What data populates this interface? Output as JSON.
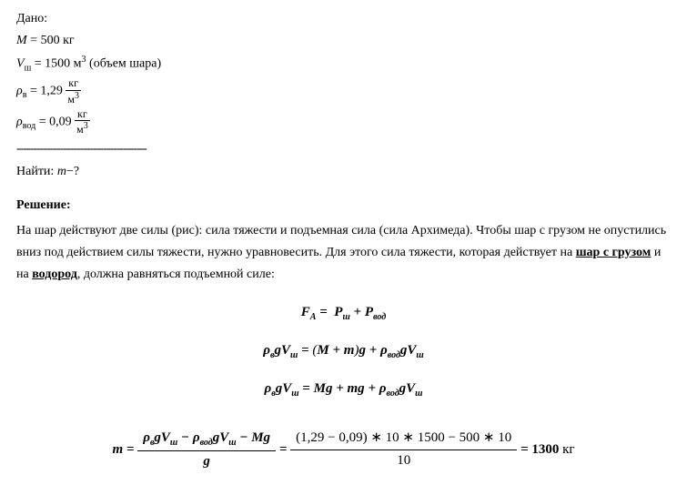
{
  "given": {
    "title": "Дано:",
    "mass_label": "M",
    "mass_value": "= 500 кг",
    "volume_label": "V",
    "volume_sub": "ш",
    "volume_value": "= 1500 м",
    "volume_sup": "3",
    "volume_note": " (объем шара)",
    "rho_air_label": "ρ",
    "rho_air_sub": "в",
    "rho_air_eq": "= 1,29",
    "rho_unit_num": "кг",
    "rho_unit_den_base": "м",
    "rho_unit_den_sup": "3",
    "rho_hyd_label": "ρ",
    "rho_hyd_sub": "вод",
    "rho_hyd_eq": "= 0,09",
    "separator": "---------------------------------------",
    "find_label": "Найти: ",
    "find_var": "m",
    "find_q": "−?"
  },
  "solution": {
    "title": "Решение:",
    "text_part1": "На шар действуют две силы (рис): сила тяжести и подъемная сила (сила Архимеда). Чтобы шар с грузом не опустились вниз под действием силы тяжести, нужно уравновесить. Для этого сила тяжести, которая действует на ",
    "underline1": "шар с грузом",
    "text_part2": " и на ",
    "underline2": "водород",
    "text_part3": ", должна равняться подъемной силе:"
  },
  "eq1": {
    "FA": "F",
    "FA_sub": "A",
    "eq": " = ",
    "P1": "P",
    "P1_sub": "ш",
    "plus": " + ",
    "P2": "P",
    "P2_sub": "вод"
  },
  "eq2": {
    "lhs_rho": "ρ",
    "lhs_rho_sub": "в",
    "lhs_g": "g",
    "lhs_V": "V",
    "lhs_V_sub": "ш",
    "eq": " = ",
    "rhs_paren_open": "(",
    "rhs_M": "M",
    "rhs_plus1": " + ",
    "rhs_m": "m",
    "rhs_paren_close": ")",
    "rhs_g": "g",
    "rhs_plus2": " + ",
    "rhs_rho": "ρ",
    "rhs_rho_sub": "вод",
    "rhs_g2": "g",
    "rhs_V2": "V",
    "rhs_V2_sub": "ш"
  },
  "eq3": {
    "lhs_rho": "ρ",
    "lhs_rho_sub": "в",
    "lhs_g": "g",
    "lhs_V": "V",
    "lhs_V_sub": "ш",
    "eq": " = ",
    "rhs_Mg": "Mg",
    "rhs_plus1": " + ",
    "rhs_mg": "mg",
    "rhs_plus2": " + ",
    "rhs_rho": "ρ",
    "rhs_rho_sub": "вод",
    "rhs_g2": "g",
    "rhs_V2": "V",
    "rhs_V2_sub": "ш"
  },
  "eq4": {
    "m": "m",
    "eq1": " = ",
    "num1_rho1": "ρ",
    "num1_rho1_sub": "в",
    "num1_g1": "g",
    "num1_V1": "V",
    "num1_V1_sub": "ш",
    "num1_minus1": " − ",
    "num1_rho2": "ρ",
    "num1_rho2_sub": "вод",
    "num1_g2": "g",
    "num1_V2": "V",
    "num1_V2_sub": "ш",
    "num1_minus2": " − ",
    "num1_Mg": "Mg",
    "den1": "g",
    "eq2": " = ",
    "num2": "(1,29 − 0,09) ∗ 10 ∗ 1500 − 500 ∗ 10",
    "den2": "10",
    "eq3": " = ",
    "result": "1300",
    "unit": " кг"
  }
}
